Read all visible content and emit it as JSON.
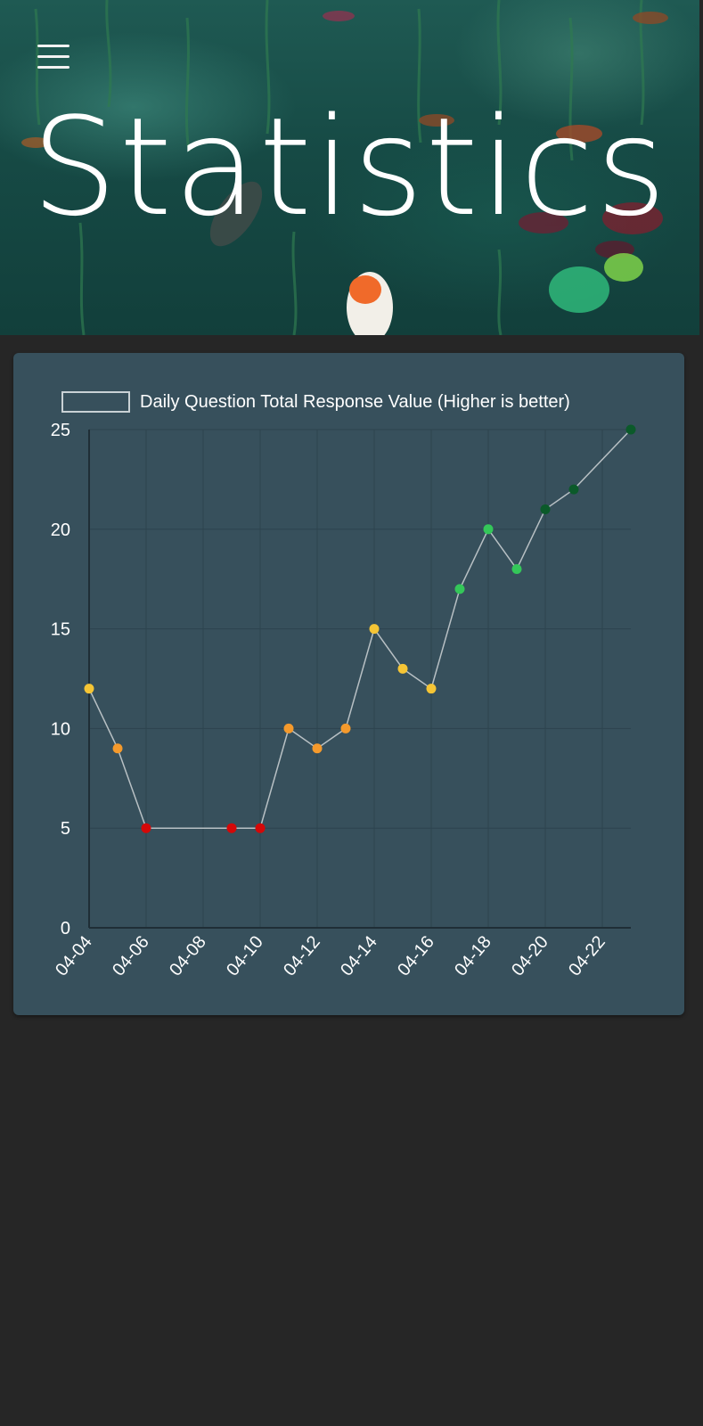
{
  "page": {
    "title": "Statistics",
    "background_color": "#262626"
  },
  "menu": {
    "icon": "hamburger-menu-icon"
  },
  "chart_data": {
    "type": "line",
    "legend": {
      "label": "Daily Question Total Response Value (Higher is better)",
      "position": "top"
    },
    "x": [
      "04-04",
      "04-05",
      "04-06",
      "04-09",
      "04-10",
      "04-11",
      "04-12",
      "04-13",
      "04-14",
      "04-15",
      "04-16",
      "04-17",
      "04-18",
      "04-19",
      "04-20",
      "04-21",
      "04-23"
    ],
    "y": [
      12,
      9,
      5,
      5,
      5,
      10,
      9,
      10,
      15,
      13,
      12,
      17,
      20,
      18,
      21,
      22,
      25
    ],
    "point_colors": [
      "#f5c535",
      "#f59a2c",
      "#d40808",
      "#d40808",
      "#d40808",
      "#f59a2c",
      "#f59a2c",
      "#f59a2c",
      "#f5c535",
      "#f5c535",
      "#f5c535",
      "#34c759",
      "#34c759",
      "#34c759",
      "#0b5a2a",
      "#0b5a2a",
      "#0b5a2a"
    ],
    "x_ticks": [
      "04-04",
      "04-06",
      "04-08",
      "04-10",
      "04-12",
      "04-14",
      "04-16",
      "04-18",
      "04-20",
      "04-22"
    ],
    "y_ticks": [
      0,
      5,
      10,
      15,
      20,
      25
    ],
    "xlim": [
      "04-04",
      "04-23"
    ],
    "ylim": [
      0,
      25
    ],
    "xlabel": "",
    "ylabel": "",
    "grid": true,
    "colors": {
      "line": "#b8c0c4",
      "grid": "#2d434e",
      "axis": "#1f2e36",
      "text": "#ffffff"
    }
  }
}
